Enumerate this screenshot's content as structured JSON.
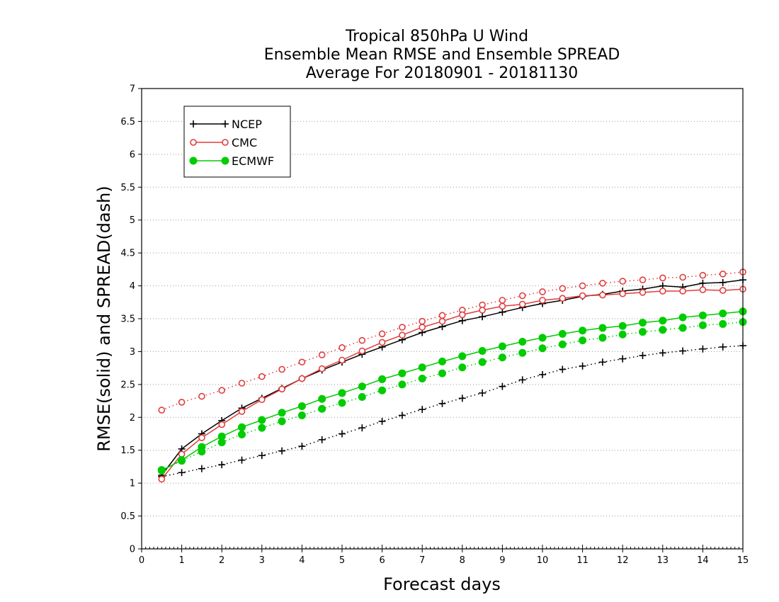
{
  "chart_data": {
    "type": "line",
    "title_lines": [
      "Tropical 850hPa U Wind",
      "Ensemble Mean RMSE and Ensemble SPREAD",
      "Average For 20180901 - 20181130"
    ],
    "xlabel": "Forecast days",
    "ylabel": "RMSE(solid) and SPREAD(dash)",
    "xlim": [
      0,
      15
    ],
    "ylim": [
      0,
      7
    ],
    "x_ticks": [
      0,
      1,
      2,
      3,
      4,
      5,
      6,
      7,
      8,
      9,
      10,
      11,
      12,
      13,
      14,
      15
    ],
    "x_tick_labels": [
      "0",
      "1",
      "2",
      "3",
      "4",
      "5",
      "6",
      "7",
      "8",
      "9",
      "10",
      "11",
      "12",
      "13",
      "14",
      "15"
    ],
    "y_ticks": [
      0,
      0.5,
      1,
      1.5,
      2,
      2.5,
      3,
      3.5,
      4,
      4.5,
      5,
      5.5,
      6,
      6.5,
      7
    ],
    "y_tick_labels": [
      "0",
      "0.5",
      "1",
      "1.5",
      "2",
      "2.5",
      "3",
      "3.5",
      "4",
      "4.5",
      "5",
      "5.5",
      "6",
      "6.5",
      "7"
    ],
    "grid": "horizontal dotted",
    "legend_position": "top-left",
    "x": [
      0.5,
      1,
      1.5,
      2,
      2.5,
      3,
      3.5,
      4,
      4.5,
      5,
      5.5,
      6,
      6.5,
      7,
      7.5,
      8,
      8.5,
      9,
      9.5,
      10,
      10.5,
      11,
      11.5,
      12,
      12.5,
      13,
      13.5,
      14,
      14.5,
      15
    ],
    "series": [
      {
        "name": "NCEP",
        "color": "#000000",
        "marker": "plus",
        "rmse": [
          1.12,
          1.52,
          1.75,
          1.95,
          2.14,
          2.29,
          2.44,
          2.59,
          2.72,
          2.84,
          2.96,
          3.07,
          3.18,
          3.29,
          3.38,
          3.47,
          3.53,
          3.6,
          3.67,
          3.73,
          3.78,
          3.84,
          3.87,
          3.92,
          3.95,
          4.0,
          3.98,
          4.04,
          4.05,
          4.09
        ],
        "spread": [
          1.1,
          1.16,
          1.22,
          1.28,
          1.35,
          1.42,
          1.49,
          1.56,
          1.66,
          1.75,
          1.84,
          1.94,
          2.03,
          2.12,
          2.21,
          2.29,
          2.37,
          2.47,
          2.57,
          2.65,
          2.73,
          2.78,
          2.84,
          2.89,
          2.94,
          2.98,
          3.01,
          3.04,
          3.07,
          3.09
        ]
      },
      {
        "name": "CMC",
        "color": "#e03c3c",
        "marker": "circle-open",
        "rmse": [
          1.06,
          1.44,
          1.69,
          1.89,
          2.09,
          2.27,
          2.43,
          2.59,
          2.74,
          2.87,
          3.01,
          3.14,
          3.25,
          3.37,
          3.46,
          3.56,
          3.63,
          3.69,
          3.72,
          3.78,
          3.81,
          3.85,
          3.86,
          3.88,
          3.9,
          3.92,
          3.92,
          3.94,
          3.93,
          3.95
        ],
        "spread": [
          2.11,
          2.23,
          2.32,
          2.41,
          2.52,
          2.62,
          2.73,
          2.84,
          2.95,
          3.06,
          3.17,
          3.27,
          3.37,
          3.46,
          3.55,
          3.63,
          3.71,
          3.78,
          3.85,
          3.91,
          3.96,
          4.0,
          4.04,
          4.07,
          4.09,
          4.12,
          4.13,
          4.16,
          4.18,
          4.21
        ]
      },
      {
        "name": "ECMWF",
        "color": "#00cc00",
        "marker": "circle-filled",
        "rmse": [
          1.19,
          1.35,
          1.55,
          1.71,
          1.85,
          1.96,
          2.07,
          2.17,
          2.28,
          2.37,
          2.47,
          2.58,
          2.67,
          2.76,
          2.85,
          2.93,
          3.01,
          3.08,
          3.15,
          3.21,
          3.27,
          3.32,
          3.36,
          3.39,
          3.44,
          3.47,
          3.52,
          3.55,
          3.58,
          3.61
        ],
        "spread": [
          1.2,
          1.34,
          1.48,
          1.62,
          1.74,
          1.84,
          1.94,
          2.03,
          2.13,
          2.22,
          2.31,
          2.41,
          2.5,
          2.59,
          2.67,
          2.76,
          2.84,
          2.91,
          2.98,
          3.05,
          3.11,
          3.17,
          3.21,
          3.26,
          3.3,
          3.33,
          3.36,
          3.4,
          3.42,
          3.45
        ]
      }
    ]
  }
}
